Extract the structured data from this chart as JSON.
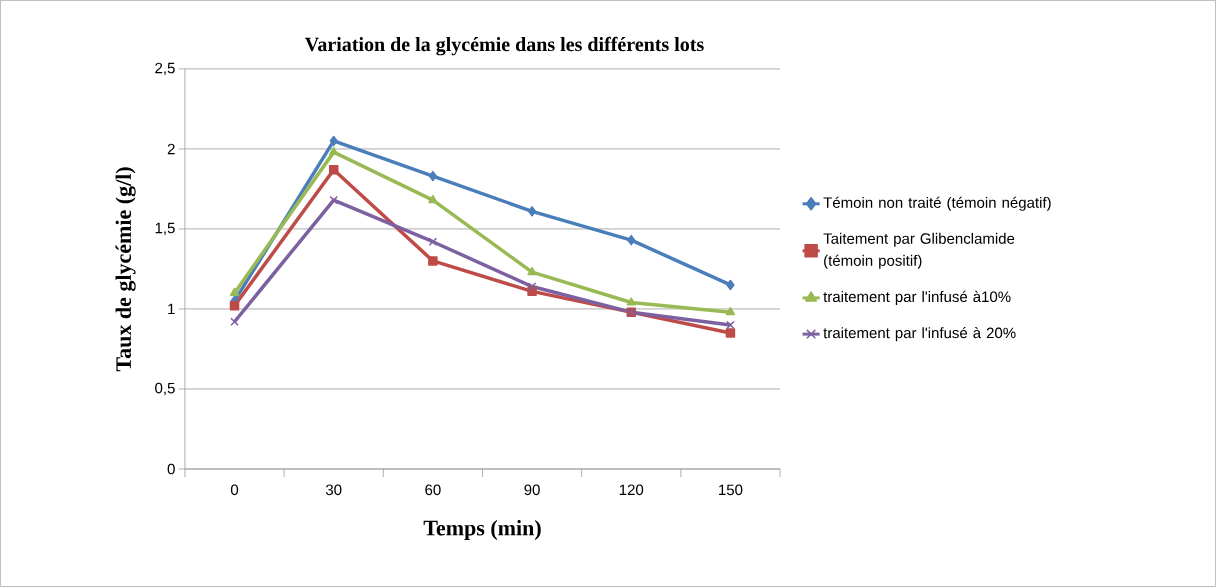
{
  "chart_data": {
    "type": "line",
    "title": "Variation de la glycémie dans les différents lots",
    "xlabel": "Temps (min)",
    "ylabel": "Taux de glycémie (g/l)",
    "categories": [
      "0",
      "30",
      "60",
      "90",
      "120",
      "150"
    ],
    "series": [
      {
        "name": "Témoin non traité (témoin négatif)",
        "color": "#4a7ebb",
        "marker": "diamond",
        "values": [
          1.05,
          2.05,
          1.83,
          1.61,
          1.43,
          1.15
        ]
      },
      {
        "name": "Taitement par Glibenclamide (témoin positif)",
        "color": "#be4b48",
        "marker": "square",
        "values": [
          1.02,
          1.87,
          1.3,
          1.11,
          0.98,
          0.85
        ]
      },
      {
        "name": "traitement par l'infusé à10%",
        "color": "#98b954",
        "marker": "triangle",
        "values": [
          1.1,
          1.98,
          1.68,
          1.23,
          1.04,
          0.98
        ]
      },
      {
        "name": "traitement par l'infusé à 20%",
        "color": "#7d60a0",
        "marker": "cross",
        "values": [
          0.92,
          1.68,
          1.42,
          1.14,
          0.98,
          0.9
        ]
      }
    ],
    "ylim": [
      0,
      2.5
    ],
    "yticks": [
      0,
      {
        "value": 0.5,
        "label": "0,5"
      },
      1,
      {
        "value": 1.5,
        "label": "1,5"
      },
      2,
      {
        "value": 2.5,
        "label": "2,5"
      }
    ],
    "grid": "y",
    "legend": "right",
    "line_style": "solid"
  }
}
